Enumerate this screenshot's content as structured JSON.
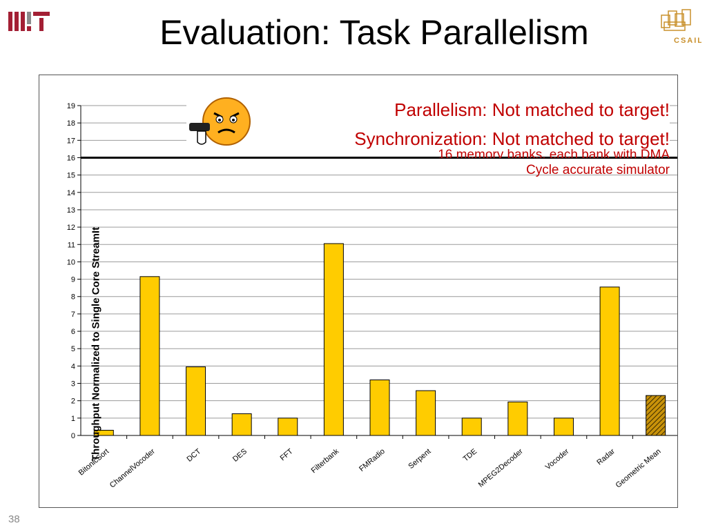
{
  "slide": {
    "title": "Evaluation: Task Parallelism",
    "slide_number": "38",
    "logo_left_text": "MIT",
    "logo_right_text": "CSAIL"
  },
  "annotations": {
    "line1": "Parallelism: Not matched to target!",
    "line2": "Synchronization: Not matched to target!",
    "line3": "16 memory banks, each bank with DMA",
    "line4": "Cycle accurate simulator"
  },
  "icons": {
    "emoji": "angry-face-thumbs-down-icon"
  },
  "chart_data": {
    "type": "bar",
    "ylabel": "Throughput Normalized to Single Core StreamIt",
    "xlabel": "",
    "ylim": [
      0,
      19
    ],
    "yticks": [
      0,
      1,
      2,
      3,
      4,
      5,
      6,
      7,
      8,
      9,
      10,
      11,
      12,
      13,
      14,
      15,
      16,
      17,
      18,
      19
    ],
    "grid": true,
    "categories": [
      "BitonicSort",
      "ChannelVocoder",
      "DCT",
      "DES",
      "FFT",
      "Filterbank",
      "FMRadio",
      "Serpent",
      "TDE",
      "MPEG2Decoder",
      "Vocoder",
      "Radar",
      "Geometric Mean"
    ],
    "values": [
      0.3,
      9.15,
      3.95,
      1.25,
      1.0,
      11.05,
      3.2,
      2.58,
      1.0,
      1.93,
      1.0,
      8.55,
      2.3
    ],
    "bar_color": "#ffcc00",
    "highlight_category": "Geometric Mean",
    "highlight_style": "hatched",
    "reference_line": 16
  }
}
